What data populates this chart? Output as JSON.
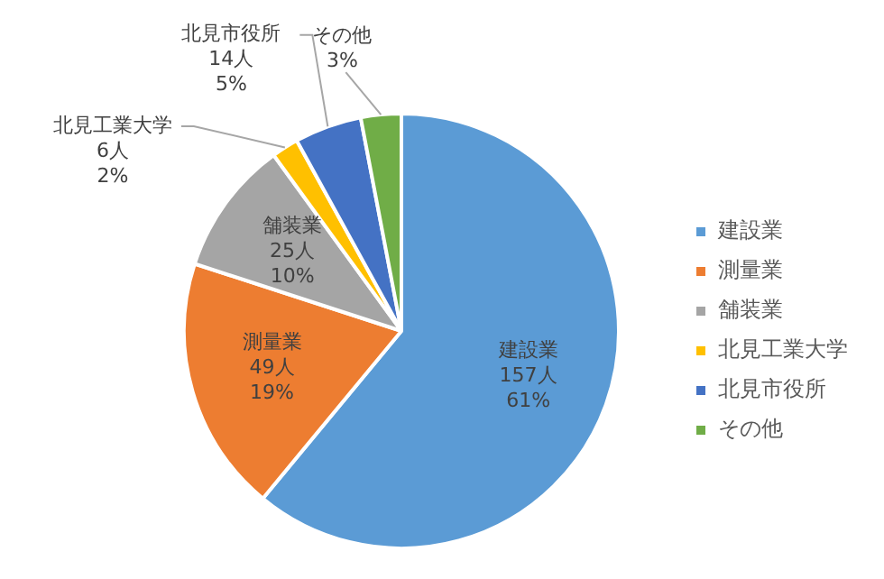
{
  "chart_data": {
    "type": "pie",
    "categories": [
      "建設業",
      "測量業",
      "舗装業",
      "北見工業大学",
      "北見市役所",
      "その他"
    ],
    "values": [
      61,
      19,
      10,
      2,
      5,
      3
    ],
    "colors": [
      "#5b9bd5",
      "#ed7d31",
      "#a5a5a5",
      "#ffc000",
      "#4472c4",
      "#70ad47"
    ],
    "value_labels": [
      "157人\n61%",
      "49人\n19%",
      "25人\n10%",
      "6人\n2%",
      "14人\n5%",
      "3%"
    ],
    "legend": "right"
  }
}
